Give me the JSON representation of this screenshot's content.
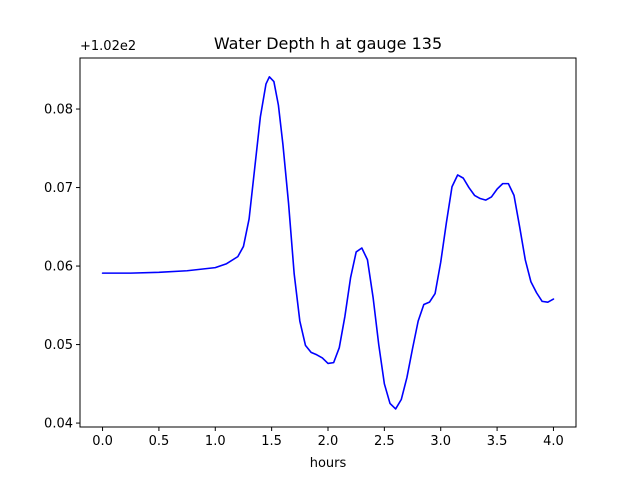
{
  "chart_data": {
    "type": "line",
    "title": "Water Depth h at gauge 135",
    "xlabel": "hours",
    "ylabel": "",
    "offset_label": "+1.02e2",
    "offset_value": 102,
    "xlim": [
      -0.2,
      4.2
    ],
    "ylim": [
      0.0395,
      0.0865
    ],
    "xticks": [
      0.0,
      0.5,
      1.0,
      1.5,
      2.0,
      2.5,
      3.0,
      3.5,
      4.0
    ],
    "xtick_labels": [
      "0.0",
      "0.5",
      "1.0",
      "1.5",
      "2.0",
      "2.5",
      "3.0",
      "3.5",
      "4.0"
    ],
    "yticks": [
      0.04,
      0.05,
      0.06,
      0.07,
      0.08
    ],
    "ytick_labels": [
      "0.04",
      "0.05",
      "0.06",
      "0.07",
      "0.08"
    ],
    "grid": false,
    "series": [
      {
        "color": "#0000ff",
        "x": [
          0.0,
          0.25,
          0.5,
          0.75,
          1.0,
          1.1,
          1.2,
          1.25,
          1.3,
          1.35,
          1.4,
          1.45,
          1.48,
          1.52,
          1.56,
          1.6,
          1.65,
          1.7,
          1.75,
          1.8,
          1.85,
          1.9,
          1.95,
          2.0,
          2.05,
          2.1,
          2.15,
          2.2,
          2.25,
          2.3,
          2.35,
          2.4,
          2.45,
          2.5,
          2.55,
          2.6,
          2.65,
          2.7,
          2.75,
          2.8,
          2.85,
          2.9,
          2.95,
          3.0,
          3.05,
          3.1,
          3.15,
          3.2,
          3.25,
          3.3,
          3.35,
          3.4,
          3.45,
          3.5,
          3.55,
          3.6,
          3.65,
          3.7,
          3.75,
          3.8,
          3.85,
          3.9,
          3.95,
          4.0
        ],
        "y": [
          0.0591,
          0.0591,
          0.0592,
          0.0594,
          0.0598,
          0.0603,
          0.0612,
          0.0625,
          0.066,
          0.0725,
          0.079,
          0.0832,
          0.0841,
          0.0835,
          0.0805,
          0.0755,
          0.068,
          0.059,
          0.053,
          0.0499,
          0.049,
          0.0487,
          0.0483,
          0.0476,
          0.0477,
          0.0496,
          0.0536,
          0.0585,
          0.0618,
          0.0623,
          0.0608,
          0.056,
          0.05,
          0.045,
          0.0425,
          0.0418,
          0.043,
          0.0458,
          0.0495,
          0.053,
          0.0551,
          0.0554,
          0.0565,
          0.0605,
          0.0655,
          0.0701,
          0.0716,
          0.0712,
          0.07,
          0.069,
          0.0686,
          0.0684,
          0.0688,
          0.0698,
          0.0705,
          0.0705,
          0.069,
          0.065,
          0.0608,
          0.058,
          0.0566,
          0.0555,
          0.0554,
          0.0558
        ]
      }
    ]
  }
}
